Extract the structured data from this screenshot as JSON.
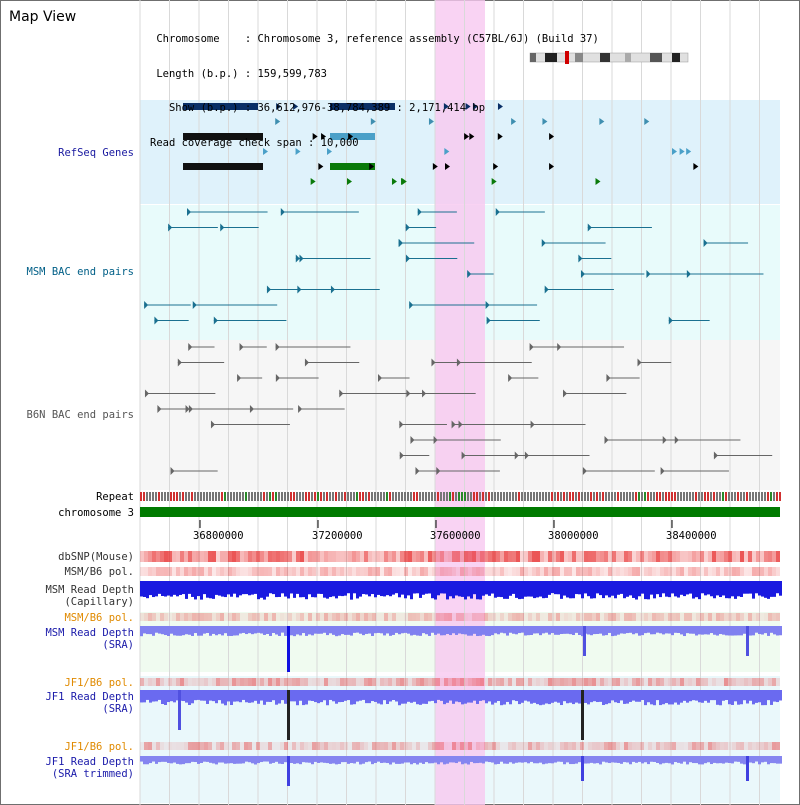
{
  "header": {
    "title": "Map View",
    "info_lines": [
      " Chromosome    : Chromosome 3, reference assembly (C57BL/6J) (Build 37)",
      " Length (b.p.) : 159,599,783",
      "   Show (b.p.) : 36,612,976-38,784,389 : 2,171,414 bp",
      "Read coverage check span : 10,000"
    ]
  },
  "tracks": {
    "refseq": "RefSeq Genes",
    "msm_bac": "MSM BAC end pairs",
    "b6n_bac": "B6N BAC end pairs",
    "repeat": "Repeat",
    "chromosome": "chromosome 3",
    "dbsnp": "dbSNP(Mouse)",
    "msm_b6_pol_1": "MSM/B6 pol.",
    "msm_depth_cap_1": "MSM Read Depth",
    "msm_depth_cap_2": "(Capillary)",
    "msm_b6_pol_2": "MSM/B6 pol.",
    "msm_depth_sra_1": "MSM Read Depth",
    "msm_depth_sra_2": "(SRA)",
    "jf1_b6_pol_1": "JF1/B6 pol.",
    "jf1_depth_sra_1": "JF1 Read Depth",
    "jf1_depth_sra_2": "(SRA)",
    "jf1_b6_pol_2": "JF1/B6 pol.",
    "jf1_depth_trim_1": "JF1 Read Depth",
    "jf1_depth_trim_2": "(SRA trimmed)"
  },
  "axis": {
    "ticks": [
      "36800000",
      "37200000",
      "37600000",
      "38000000",
      "38400000"
    ]
  },
  "colors": {
    "refseq_label": "#1a1aa0",
    "msm_label": "#005f87",
    "b6n_label": "#555555",
    "dark_label": "#333333",
    "orange_label": "#e08a00",
    "blue_label": "#1a1aaa",
    "highlight": "#f7c8f0"
  }
}
